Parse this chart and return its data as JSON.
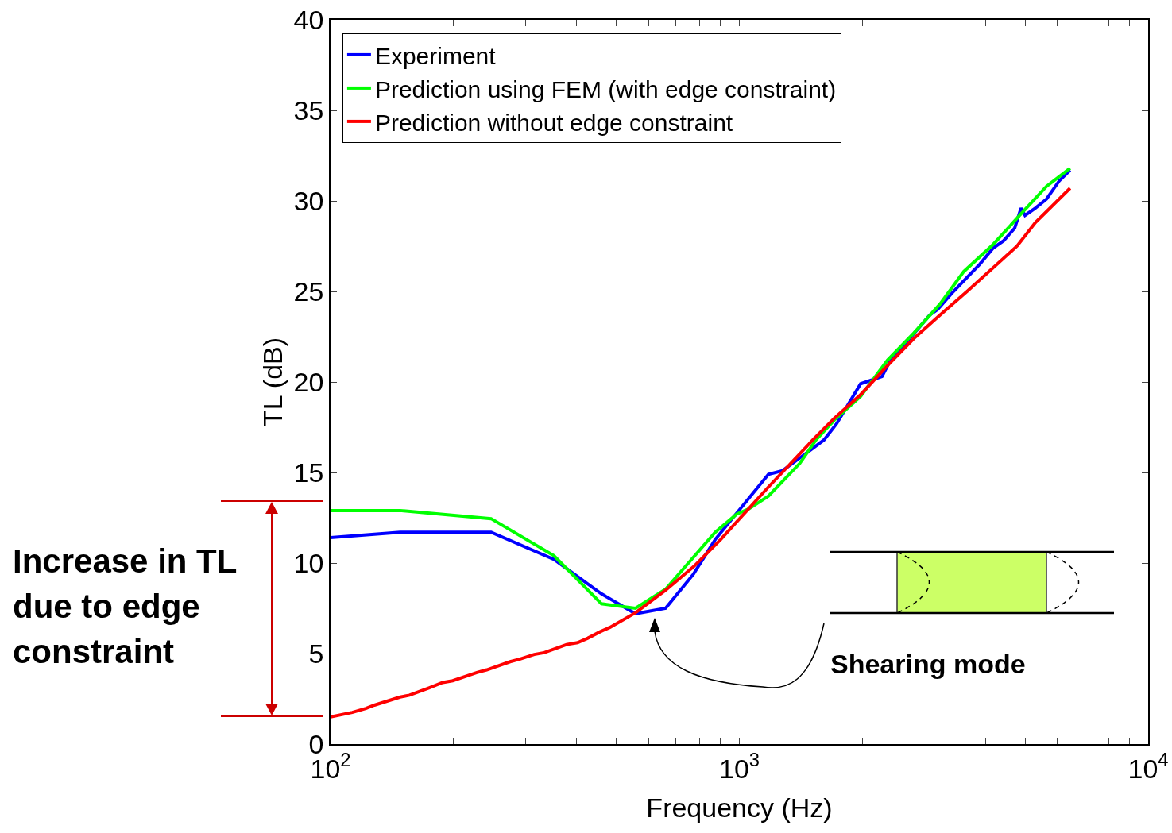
{
  "chart_data": {
    "type": "line",
    "xlabel": "Frequency (Hz)",
    "ylabel": "TL (dB)",
    "xlim": [
      100,
      10000
    ],
    "ylim": [
      0,
      40
    ],
    "xticks": [
      {
        "value": 100,
        "label": "10$^{2}$"
      },
      {
        "value": 200,
        "label": null
      },
      {
        "value": 300,
        "label": null
      },
      {
        "value": 400,
        "label": null
      },
      {
        "value": 500,
        "label": null
      },
      {
        "value": 600,
        "label": null
      },
      {
        "value": 700,
        "label": null
      },
      {
        "value": 800,
        "label": null
      },
      {
        "value": 900,
        "label": null
      },
      {
        "value": 1000,
        "label": "10$^{3}$"
      },
      {
        "value": 2000,
        "label": null
      },
      {
        "value": 3000,
        "label": null
      },
      {
        "value": 4000,
        "label": null
      },
      {
        "value": 5000,
        "label": null
      },
      {
        "value": 6000,
        "label": null
      },
      {
        "value": 7000,
        "label": null
      },
      {
        "value": 8000,
        "label": null
      },
      {
        "value": 9000,
        "label": null
      },
      {
        "value": 10000,
        "label": "10$^{4}$"
      }
    ],
    "yticks": [
      0,
      5,
      10,
      15,
      20,
      25,
      30,
      35,
      40
    ],
    "grid": false,
    "log": "x",
    "legend": "top left",
    "line_style": "solid",
    "marker": "none",
    "series": [
      {
        "name": "Experiment",
        "color": "#0000ff",
        "x": [
          100,
          148,
          247,
          352,
          460,
          557,
          660,
          773,
          873,
          1178,
          1276,
          1405,
          1611,
          1730,
          1980,
          2233,
          2330,
          2923,
          3054,
          3340,
          3871,
          4179,
          4430,
          4716,
          4887,
          4998,
          5297,
          5641,
          6057,
          6443
        ],
        "values": [
          11.4,
          11.7,
          11.7,
          10.2,
          8.3,
          7.2,
          7.5,
          9.4,
          11.3,
          14.9,
          15.1,
          15.8,
          16.8,
          17.7,
          19.9,
          20.3,
          21.1,
          23.7,
          24.0,
          25.0,
          26.5,
          27.4,
          27.8,
          28.5,
          29.6,
          29.2,
          29.6,
          30.1,
          31.1,
          31.7
        ]
      },
      {
        "name": "Prediction using FEM (with edge constraint)",
        "color": "#00ff00",
        "x": [
          100,
          148,
          247,
          352,
          460,
          557,
          660,
          873,
          985,
          1057,
          1178,
          1405,
          1540,
          1708,
          1980,
          2303,
          2672,
          3096,
          3540,
          4179,
          4940,
          5641,
          6443
        ],
        "values": [
          12.9,
          12.9,
          12.45,
          10.4,
          7.75,
          7.5,
          8.55,
          11.7,
          12.7,
          13.0,
          13.7,
          15.5,
          16.8,
          17.9,
          19.2,
          21.2,
          22.7,
          24.3,
          26.1,
          27.6,
          29.4,
          30.8,
          31.8
        ]
      },
      {
        "name": "Prediction without edge constraint",
        "color": "#ff0000",
        "x": [
          100,
          113,
          122,
          128,
          148,
          156,
          174,
          188,
          199,
          228,
          241,
          275,
          291,
          315,
          333,
          378,
          402,
          426,
          456,
          483,
          557,
          660,
          773,
          900,
          1178,
          1513,
          1708,
          1980,
          2303,
          2672,
          3096,
          3605,
          4776,
          5297,
          6443
        ],
        "values": [
          1.5,
          1.75,
          1.97,
          2.15,
          2.6,
          2.7,
          3.1,
          3.4,
          3.5,
          3.95,
          4.1,
          4.55,
          4.7,
          4.95,
          5.05,
          5.5,
          5.6,
          5.85,
          6.2,
          6.45,
          7.25,
          8.5,
          9.8,
          11.3,
          14.2,
          16.8,
          18.0,
          19.3,
          20.9,
          22.4,
          23.7,
          25.0,
          27.5,
          28.8,
          30.7
        ]
      }
    ],
    "annotations": [
      "Increase in TL due to edge constraint",
      "Shearing mode"
    ]
  }
}
